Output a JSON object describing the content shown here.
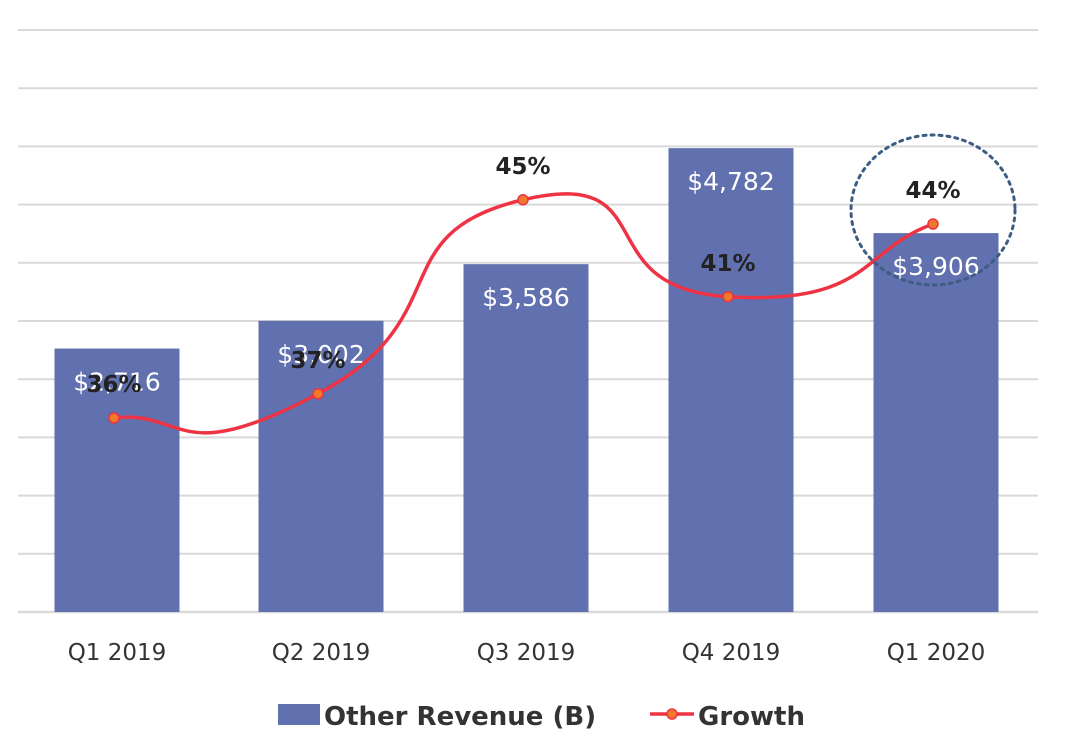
{
  "chart_data": {
    "type": "bar",
    "categories": [
      "Q1 2019",
      "Q2 2019",
      "Q3 2019",
      "Q4 2019",
      "Q1 2020"
    ],
    "series": [
      {
        "name": "Other Revenue (B)",
        "type": "bar",
        "values": [
          2716,
          3002,
          3586,
          4782,
          3906
        ],
        "labels": [
          "$2,716",
          "$3,002",
          "$3,586",
          "$4,782",
          "$3,906"
        ],
        "color": "#6170ae"
      },
      {
        "name": "Growth",
        "type": "line",
        "values": [
          36,
          37,
          45,
          41,
          44
        ],
        "labels": [
          "36%",
          "37%",
          "45%",
          "41%",
          "44%"
        ],
        "color": "#ee3344",
        "marker_color": "#f07a2a"
      }
    ],
    "highlight": {
      "category": "Q1 2020",
      "series": "Growth",
      "style": "dotted-circle",
      "color": "#3d5e80"
    },
    "ylim": [
      0,
      6000
    ],
    "growth_range": [
      28,
      52
    ],
    "grid": true,
    "gridline_count": 11,
    "legend_position": "bottom-center"
  }
}
